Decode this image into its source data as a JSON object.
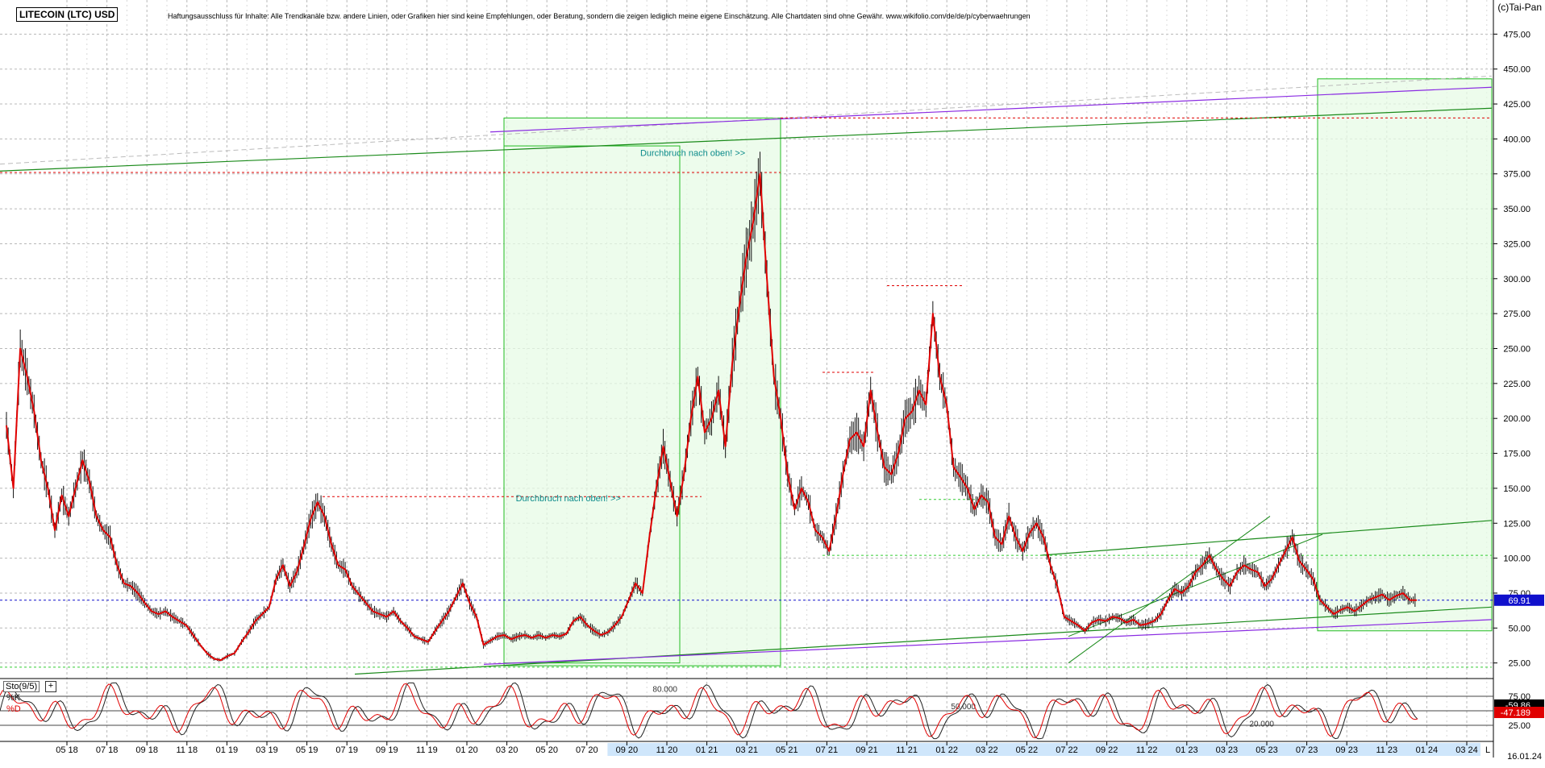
{
  "header": {
    "title": "LITECOIN (LTC) USD",
    "disclaimer": "Haftungsausschluss für Inhalte: Alle Trendkanäle bzw. andere Linien, oder Grafiken hier sind keine Empfehlungen, oder Beratung, sondern die zeigen lediglich meine eigene Einschätzung. Alle Chartdaten sind ohne Gewähr.   www.wikifolio.com/de/de/p/cyberwaehrungen",
    "copyright": "(c)Tai-Pan",
    "date": "16.01.24"
  },
  "oscillator": {
    "label": "Sto(9/5)",
    "plus": "+",
    "k_label": "%K",
    "d_label": "%D",
    "k_value": "59.86",
    "d_value": "47.189"
  },
  "chart_data": [
    {
      "type": "line",
      "title": "LITECOIN (LTC) USD",
      "ylim": [
        15,
        485
      ],
      "yticks": [
        25,
        50,
        75,
        100,
        125,
        150,
        175,
        200,
        225,
        250,
        275,
        300,
        325,
        350,
        375,
        400,
        425,
        450,
        475
      ],
      "ytick_labels": [
        "25.00",
        "50.00",
        "75.00",
        "100.00",
        "125.00",
        "150.00",
        "175.00",
        "200.00",
        "225.00",
        "250.00",
        "275.00",
        "300.00",
        "325.00",
        "350.00",
        "375.00",
        "400.00",
        "425.00",
        "450.00",
        "475.00"
      ],
      "xticks": [
        "05 18",
        "07 18",
        "09 18",
        "11 18",
        "01 19",
        "03 19",
        "05 19",
        "07 19",
        "09 19",
        "11 19",
        "01 20",
        "03 20",
        "05 20",
        "07 20",
        "09 20",
        "11 20",
        "01 21",
        "03 21",
        "05 21",
        "07 21",
        "09 21",
        "11 21",
        "01 22",
        "03 22",
        "05 22",
        "07 22",
        "09 22",
        "11 22",
        "01 23",
        "03 23",
        "05 23",
        "07 23",
        "09 23",
        "11 23",
        "01 24",
        "03 24"
      ],
      "highlighted_xticks": [
        "09 20",
        "11 20",
        "01 21",
        "03 21",
        "05 21",
        "07 21",
        "09 21",
        "11 21",
        "01 22",
        "03 22",
        "05 22",
        "07 22",
        "09 22",
        "11 22",
        "01 23",
        "03 23",
        "05 23",
        "07 23",
        "09 23",
        "11 23",
        "01 24",
        "03 24"
      ],
      "x_end_label": "L",
      "last_price": 69.91,
      "last_price_label": "69.91",
      "series": [
        {
          "values": [
            [
              0,
              195
            ],
            [
              1,
              150
            ],
            [
              2,
              250
            ],
            [
              3,
              230
            ],
            [
              4,
              205
            ],
            [
              5,
              170
            ],
            [
              6,
              150
            ],
            [
              7,
              120
            ],
            [
              8,
              145
            ],
            [
              9,
              130
            ],
            [
              10,
              150
            ],
            [
              11,
              170
            ],
            [
              12,
              155
            ],
            [
              13,
              130
            ],
            [
              14,
              120
            ],
            [
              15,
              115
            ],
            [
              16,
              95
            ],
            [
              17,
              82
            ],
            [
              18,
              80
            ],
            [
              19,
              75
            ],
            [
              20,
              68
            ],
            [
              21,
              62
            ],
            [
              22,
              60
            ],
            [
              23,
              62
            ],
            [
              24,
              58
            ],
            [
              25,
              55
            ],
            [
              26,
              52
            ],
            [
              27,
              45
            ],
            [
              28,
              38
            ],
            [
              29,
              32
            ],
            [
              30,
              28
            ],
            [
              31,
              27
            ],
            [
              32,
              30
            ],
            [
              33,
              32
            ],
            [
              34,
              40
            ],
            [
              35,
              47
            ],
            [
              36,
              55
            ],
            [
              37,
              60
            ],
            [
              38,
              65
            ],
            [
              39,
              85
            ],
            [
              40,
              95
            ],
            [
              41,
              80
            ],
            [
              42,
              90
            ],
            [
              43,
              108
            ],
            [
              44,
              128
            ],
            [
              45,
              140
            ],
            [
              46,
              130
            ],
            [
              47,
              110
            ],
            [
              48,
              95
            ],
            [
              49,
              92
            ],
            [
              50,
              80
            ],
            [
              51,
              74
            ],
            [
              52,
              68
            ],
            [
              53,
              62
            ],
            [
              54,
              60
            ],
            [
              55,
              58
            ],
            [
              56,
              62
            ],
            [
              57,
              55
            ],
            [
              58,
              50
            ],
            [
              59,
              44
            ],
            [
              60,
              42
            ],
            [
              61,
              40
            ],
            [
              62,
              48
            ],
            [
              63,
              55
            ],
            [
              64,
              62
            ],
            [
              65,
              72
            ],
            [
              66,
              82
            ],
            [
              67,
              68
            ],
            [
              68,
              58
            ],
            [
              69,
              38
            ],
            [
              70,
              41
            ],
            [
              71,
              44
            ],
            [
              72,
              45
            ],
            [
              73,
              42
            ],
            [
              74,
              44
            ],
            [
              75,
              45
            ],
            [
              76,
              43
            ],
            [
              77,
              45
            ],
            [
              78,
              43
            ],
            [
              79,
              45
            ],
            [
              80,
              44
            ],
            [
              81,
              46
            ],
            [
              82,
              55
            ],
            [
              83,
              58
            ],
            [
              84,
              52
            ],
            [
              85,
              48
            ],
            [
              86,
              45
            ],
            [
              87,
              47
            ],
            [
              88,
              52
            ],
            [
              89,
              58
            ],
            [
              90,
              70
            ],
            [
              91,
              82
            ],
            [
              92,
              75
            ],
            [
              93,
              115
            ],
            [
              94,
              150
            ],
            [
              95,
              180
            ],
            [
              96,
              155
            ],
            [
              97,
              130
            ],
            [
              98,
              160
            ],
            [
              99,
              200
            ],
            [
              100,
              230
            ],
            [
              101,
              190
            ],
            [
              102,
              200
            ],
            [
              103,
              220
            ],
            [
              104,
              180
            ],
            [
              105,
              240
            ],
            [
              106,
              280
            ],
            [
              107,
              315
            ],
            [
              108,
              340
            ],
            [
              109,
              375
            ],
            [
              110,
              300
            ],
            [
              111,
              230
            ],
            [
              112,
              200
            ],
            [
              113,
              160
            ],
            [
              114,
              135
            ],
            [
              115,
              150
            ],
            [
              116,
              140
            ],
            [
              117,
              120
            ],
            [
              118,
              115
            ],
            [
              119,
              105
            ],
            [
              120,
              130
            ],
            [
              121,
              160
            ],
            [
              122,
              185
            ],
            [
              123,
              190
            ],
            [
              124,
              180
            ],
            [
              125,
              220
            ],
            [
              126,
              190
            ],
            [
              127,
              165
            ],
            [
              128,
              160
            ],
            [
              129,
              175
            ],
            [
              130,
              200
            ],
            [
              131,
              205
            ],
            [
              132,
              220
            ],
            [
              133,
              210
            ],
            [
              134,
              275
            ],
            [
              135,
              230
            ],
            [
              136,
              210
            ],
            [
              137,
              165
            ],
            [
              138,
              158
            ],
            [
              139,
              150
            ],
            [
              140,
              135
            ],
            [
              141,
              145
            ],
            [
              142,
              140
            ],
            [
              143,
              115
            ],
            [
              144,
              110
            ],
            [
              145,
              130
            ],
            [
              146,
              115
            ],
            [
              147,
              105
            ],
            [
              148,
              118
            ],
            [
              149,
              125
            ],
            [
              150,
              115
            ],
            [
              151,
              95
            ],
            [
              152,
              80
            ],
            [
              153,
              58
            ],
            [
              154,
              55
            ],
            [
              155,
              52
            ],
            [
              156,
              48
            ],
            [
              157,
              54
            ],
            [
              158,
              56
            ],
            [
              159,
              55
            ],
            [
              160,
              58
            ],
            [
              161,
              57
            ],
            [
              162,
              54
            ],
            [
              163,
              56
            ],
            [
              164,
              52
            ],
            [
              165,
              53
            ],
            [
              166,
              55
            ],
            [
              167,
              60
            ],
            [
              168,
              70
            ],
            [
              169,
              78
            ],
            [
              170,
              75
            ],
            [
              171,
              80
            ],
            [
              172,
              90
            ],
            [
              173,
              95
            ],
            [
              174,
              102
            ],
            [
              175,
              92
            ],
            [
              176,
              85
            ],
            [
              177,
              80
            ],
            [
              178,
              90
            ],
            [
              179,
              95
            ],
            [
              180,
              92
            ],
            [
              181,
              90
            ],
            [
              182,
              80
            ],
            [
              183,
              85
            ],
            [
              184,
              95
            ],
            [
              185,
              105
            ],
            [
              186,
              115
            ],
            [
              187,
              98
            ],
            [
              188,
              92
            ],
            [
              189,
              85
            ],
            [
              190,
              70
            ],
            [
              191,
              65
            ],
            [
              192,
              60
            ],
            [
              193,
              63
            ],
            [
              194,
              65
            ],
            [
              195,
              62
            ],
            [
              196,
              66
            ],
            [
              197,
              70
            ],
            [
              198,
              72
            ],
            [
              199,
              74
            ],
            [
              200,
              70
            ],
            [
              201,
              73
            ],
            [
              202,
              75
            ],
            [
              203,
              70
            ],
            [
              204,
              69.91
            ]
          ]
        }
      ],
      "annotations": [
        {
          "text": "Durchbruch nach oben! >>",
          "at_index": 90,
          "y": 143
        },
        {
          "text": "Durchbruch nach oben! >>",
          "at_index": 108,
          "y": 390
        }
      ],
      "grid": true
    },
    {
      "type": "line",
      "title": "Sto(9/5)",
      "ylim": [
        0,
        100
      ],
      "yticks": [
        25,
        75
      ],
      "ytick_labels": [
        "25.00",
        "75.00"
      ],
      "levels": [
        {
          "label": "80.000",
          "value": 80
        },
        {
          "label": "50.000",
          "value": 50
        },
        {
          "label": "20.000",
          "value": 20
        }
      ],
      "series": [
        {
          "name": "%K",
          "last_value": 59.86,
          "color": "#222222"
        },
        {
          "name": "%D",
          "last_value": 47.189,
          "color": "#e00000"
        }
      ]
    }
  ],
  "colors": {
    "price": "#e00000",
    "candle": "#111111",
    "grid": "#b8b8b8",
    "box_fill": "#e7fbe5",
    "box_stroke": "#22bb22",
    "trend_green": "#1a8a1a",
    "trend_purple": "#8a2be2",
    "red_dotted": "#e00000",
    "blue_dotted": "#1010cc",
    "label_teal": "#0b8a8a",
    "axis_highlight": "#cfe6fb",
    "price_tag": "#1010cc"
  }
}
